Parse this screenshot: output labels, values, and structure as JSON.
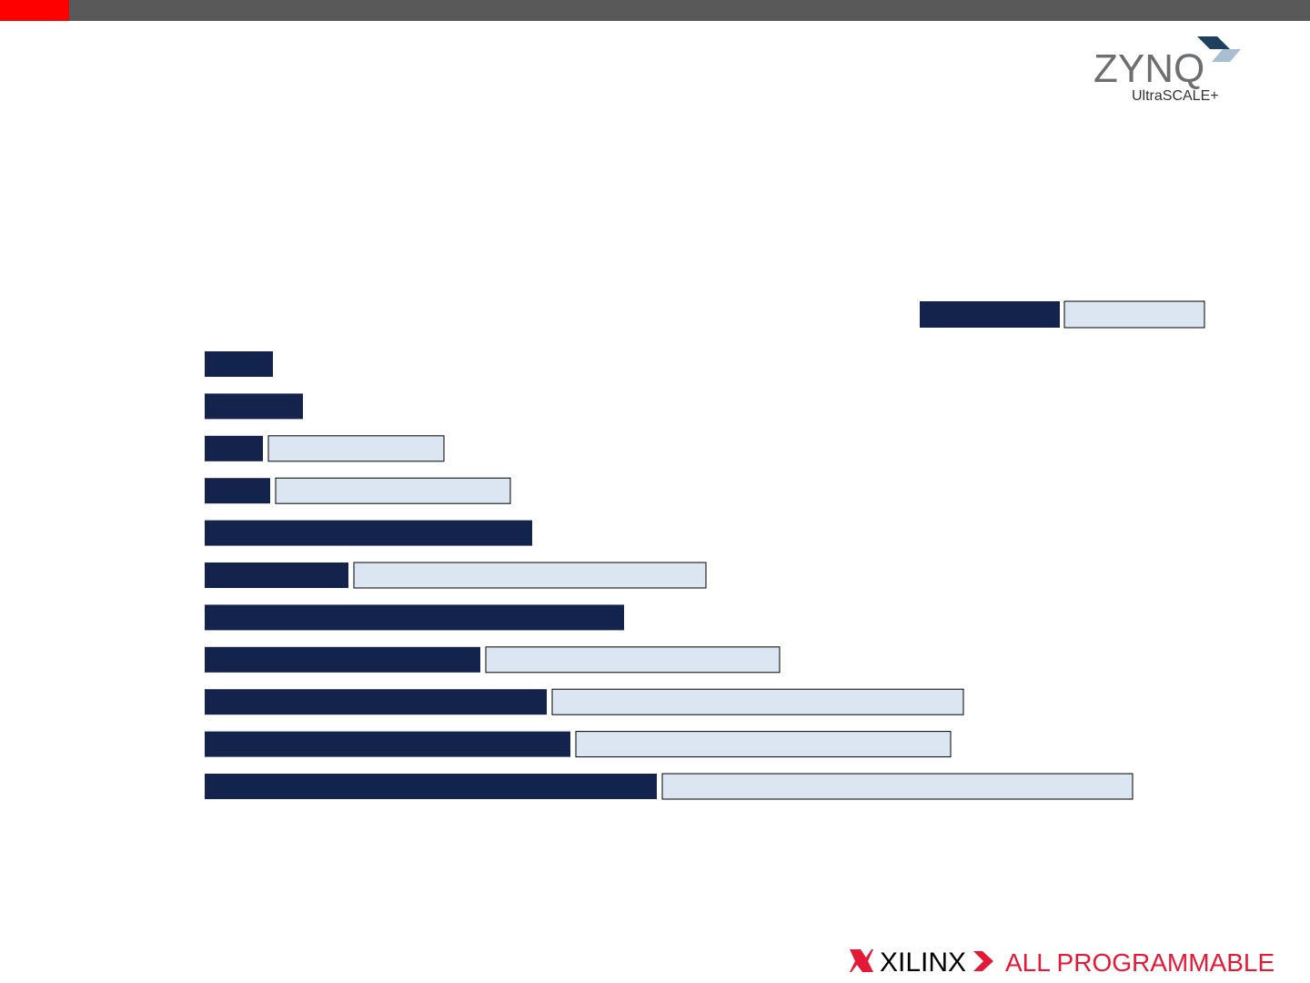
{
  "header": {
    "logo": "ZYNQ",
    "logo_sub": "UltraSCALE+"
  },
  "footer": {
    "brand": "XILINX",
    "tagline": "ALL PROGRAMMABLE"
  },
  "chart_data": {
    "type": "bar",
    "orientation": "horizontal",
    "stacked": true,
    "categories": [
      null,
      null,
      null,
      null,
      null,
      null,
      null,
      null,
      null,
      null,
      null
    ],
    "series": [
      {
        "color": "#14234b",
        "values": [
          75,
          108,
          64,
          72,
          360,
          158,
          461,
          303,
          376,
          402,
          497
        ]
      },
      {
        "color": "#dce6f2",
        "border": "#000000",
        "values": [
          null,
          null,
          193,
          258,
          null,
          387,
          null,
          323,
          452,
          412,
          517
        ]
      }
    ]
  }
}
